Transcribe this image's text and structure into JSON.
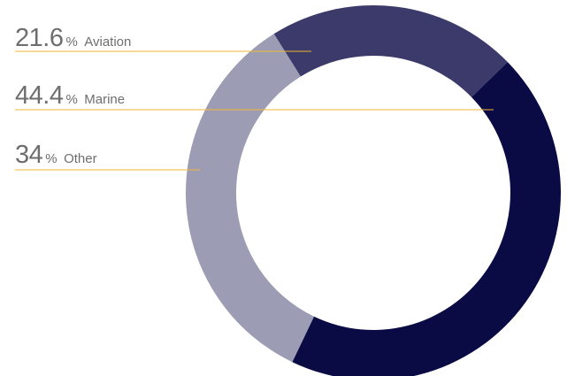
{
  "chart_data": {
    "type": "donut",
    "title": "",
    "unit": "%",
    "series": [
      {
        "name": "Aviation",
        "value": 21.6,
        "value_label": "21.6",
        "color": "#3b3a6b"
      },
      {
        "name": "Marine",
        "value": 44.4,
        "value_label": "44.4",
        "color": "#0a0a45"
      },
      {
        "name": "Other",
        "value": 34,
        "value_label": "34",
        "color": "#9c9cb4"
      }
    ],
    "leader_line_color": "#f2b733",
    "legend_placement": "left"
  }
}
